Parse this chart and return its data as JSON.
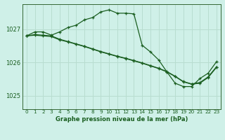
{
  "title": "Graphe pression niveau de la mer (hPa)",
  "background_color": "#cff0e8",
  "grid_color": "#b8ddd0",
  "line_color": "#1a5e20",
  "ylim": [
    1024.6,
    1027.75
  ],
  "yticks": [
    1025,
    1026,
    1027
  ],
  "xlim": [
    -0.5,
    23.5
  ],
  "series1": [
    1026.8,
    1026.92,
    1026.92,
    1026.82,
    1026.92,
    1027.05,
    1027.12,
    1027.28,
    1027.35,
    1027.52,
    1027.58,
    1027.48,
    1027.48,
    1027.46,
    1026.52,
    1026.32,
    1026.08,
    1025.72,
    1025.38,
    1025.28,
    1025.28,
    1025.52,
    1025.68,
    1026.02
  ],
  "series2": [
    1026.8,
    1026.82,
    1026.8,
    1026.78,
    1026.68,
    1026.62,
    1026.55,
    1026.48,
    1026.4,
    1026.32,
    1026.25,
    1026.18,
    1026.12,
    1026.05,
    1025.98,
    1025.9,
    1025.82,
    1025.72,
    1025.58,
    1025.42,
    1025.35,
    1025.38,
    1025.55,
    1025.85
  ],
  "series3": [
    1026.8,
    1026.84,
    1026.82,
    1026.8,
    1026.7,
    1026.63,
    1026.56,
    1026.49,
    1026.41,
    1026.33,
    1026.26,
    1026.19,
    1026.13,
    1026.06,
    1025.99,
    1025.91,
    1025.83,
    1025.73,
    1025.59,
    1025.43,
    1025.36,
    1025.4,
    1025.57,
    1025.87
  ],
  "x_labels": [
    "0",
    "1",
    "2",
    "3",
    "4",
    "5",
    "6",
    "7",
    "8",
    "9",
    "10",
    "11",
    "12",
    "13",
    "14",
    "15",
    "16",
    "17",
    "18",
    "19",
    "20",
    "21",
    "22",
    "23"
  ],
  "title_fontsize": 6.0,
  "xlabel_fontsize": 5.2,
  "ylabel_fontsize": 6.0,
  "marker_size": 2.5,
  "line_width": 0.9
}
